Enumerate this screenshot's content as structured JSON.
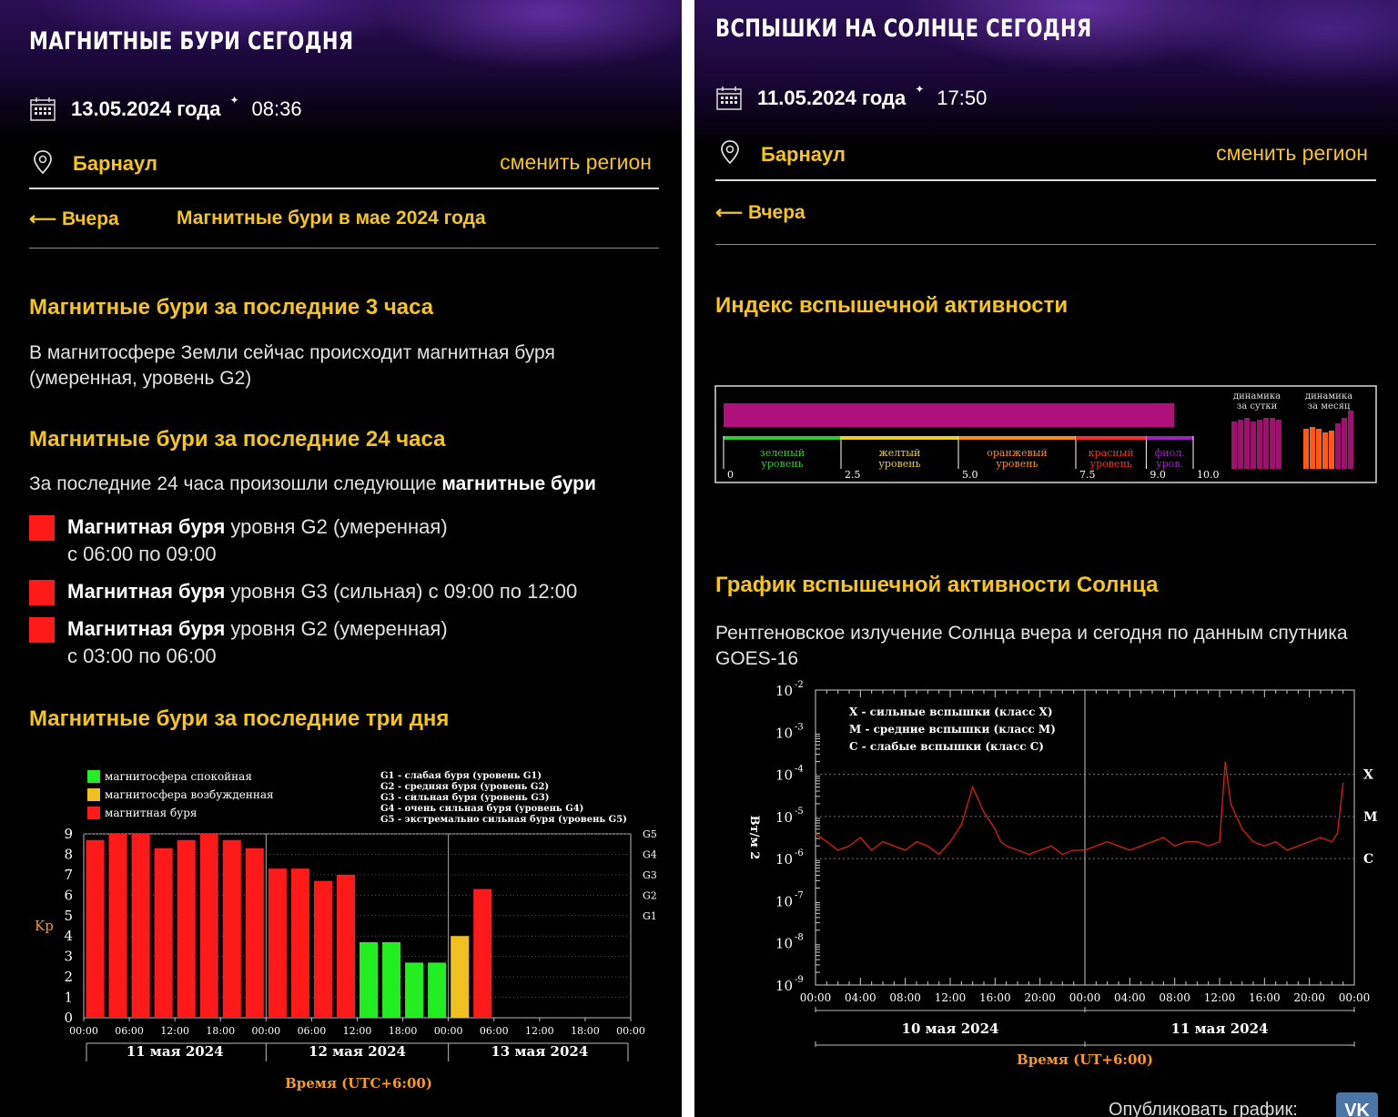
{
  "left": {
    "title": "МАГНИТНЫЕ БУРИ СЕГОДНЯ",
    "date": "13.05.2024 года",
    "time": "08:36",
    "city": "Барнаул",
    "change_region": "сменить регион",
    "nav_prev": "Вчера",
    "nav_month": "Магнитные бури в мае 2024 года",
    "sec1_title": "Магнитные бури за последние 3 часа",
    "sec1_text": "В магнитосфере Земли сейчас происходит магнитная буря (умеренная, уровень G2)",
    "sec2_title": "Магнитные бури за последние 24 часа",
    "sec2_text_plain": "За последние 24 часа произошли следующие ",
    "sec2_text_bold": "магнитные бури",
    "storms": [
      {
        "bold": "Магнитная буря",
        "text": " уровня G2 (умеренная)",
        "line2": "с 06:00 по 09:00"
      },
      {
        "bold": "Магнитная буря",
        "text": " уровня G3 (сильная) с 09:00 по 12:00",
        "line2": ""
      },
      {
        "bold": "Магнитная буря",
        "text": " уровня G2 (умеренная)",
        "line2": "с 03:00 по 06:00"
      }
    ],
    "sec3_title": "Магнитные бури за последние три дня"
  },
  "kp_chart": {
    "chart_data": {
      "type": "bar",
      "ylabel": "Kp",
      "xlabel": "Время (UTC+6:00)",
      "ylim": [
        0,
        9
      ],
      "yticks": [
        "0",
        "1",
        "2",
        "3",
        "4",
        "5",
        "6",
        "7",
        "8",
        "9"
      ],
      "right_ticks": [
        {
          "label": "G5",
          "value": 9
        },
        {
          "label": "G4",
          "value": 8
        },
        {
          "label": "G3",
          "value": 7
        },
        {
          "label": "G2",
          "value": 6
        },
        {
          "label": "G1",
          "value": 5
        }
      ],
      "xticks": [
        "00:00",
        "06:00",
        "12:00",
        "18:00",
        "00:00",
        "06:00",
        "12:00",
        "18:00",
        "00:00",
        "06:00",
        "12:00",
        "18:00",
        "00:00"
      ],
      "days": [
        "11 мая 2024",
        "12 мая 2024",
        "13 мая 2024"
      ],
      "legend_left": [
        {
          "label": "магнитосфера спокойная",
          "color": "#22ee22"
        },
        {
          "label": "магнитосфера возбужденная",
          "color": "#f0c020"
        },
        {
          "label": "магнитная буря",
          "color": "#ff1a1a"
        }
      ],
      "legend_right": [
        "G1 - слабая буря (уровень G1)",
        "G2 - средняя буря (уровень G2)",
        "G3 - сильная буря (уровень G3)",
        "G4 - очень сильная буря (уровень G4)",
        "G5 - экстремально сильная буря (уровень G5)"
      ],
      "values": [
        8.7,
        9.0,
        9.0,
        8.3,
        8.7,
        9.0,
        8.7,
        8.3,
        7.3,
        7.3,
        6.7,
        7.0,
        3.7,
        3.7,
        2.7,
        2.7,
        4.0,
        6.3
      ],
      "colors": [
        "#ff1a1a",
        "#ff1a1a",
        "#ff1a1a",
        "#ff1a1a",
        "#ff1a1a",
        "#ff1a1a",
        "#ff1a1a",
        "#ff1a1a",
        "#ff1a1a",
        "#ff1a1a",
        "#ff1a1a",
        "#ff1a1a",
        "#22ee22",
        "#22ee22",
        "#22ee22",
        "#22ee22",
        "#f0c020",
        "#ff1a1a"
      ]
    }
  },
  "right": {
    "title": "ВСПЫШКИ НА СОЛНЦЕ СЕГОДНЯ",
    "date": "11.05.2024 года",
    "time": "17:50",
    "city": "Барнаул",
    "change_region": "сменить регион",
    "nav_prev": "Вчера",
    "sec1_title": "Индекс вспышечной активности",
    "sec2_title": "График вспышечной активности Солнца",
    "sec2_text": "Рентгеновское излучение Солнца вчера и сегодня по данным спутника GOES-16",
    "publish_label": "Опубликовать график:"
  },
  "flare_index": {
    "value_fraction": 0.96,
    "bar_color": "#b0107a",
    "scale_ticks": [
      "0",
      "2.5",
      "5.0",
      "7.5",
      "9.0",
      "10.0"
    ],
    "zones": [
      {
        "line1": "зеленый",
        "line2": "уровень",
        "color": "#2ecc2e"
      },
      {
        "line1": "желтый",
        "line2": "уровень",
        "color": "#e8d020"
      },
      {
        "line1": "оранжевый",
        "line2": "уровень",
        "color": "#ff8a1a"
      },
      {
        "line1": "красный",
        "line2": "уровень",
        "color": "#ff2a2a"
      },
      {
        "line1": "фиол.",
        "line2": "уров.",
        "color": "#a020c0"
      }
    ],
    "day_label": [
      "динамика",
      "за сутки"
    ],
    "month_label": [
      "динамика",
      "за месяц"
    ]
  },
  "xray_chart": {
    "chart_data": {
      "type": "line",
      "ylabel": "Вт/м 2",
      "xlabel": "Время (UT+6:00)",
      "yscale": "log",
      "ylim": [
        1e-09,
        0.01
      ],
      "yticks_exp": [
        "-9",
        "-8",
        "-7",
        "-6",
        "-5",
        "-4",
        "-3",
        "-2"
      ],
      "class_marks": [
        {
          "label": "X",
          "exp": -4
        },
        {
          "label": "M",
          "exp": -5
        },
        {
          "label": "C",
          "exp": -6
        }
      ],
      "legend": [
        "X - сильные вспышки (класс X)",
        "M - средние вспышки (класс M)",
        "C - слабые вспышки (класс С)"
      ],
      "xticks": [
        "00:00",
        "04:00",
        "08:00",
        "12:00",
        "16:00",
        "20:00",
        "00:00",
        "04:00",
        "08:00",
        "12:00",
        "16:00",
        "20:00",
        "00:00"
      ],
      "days": [
        "10 мая 2024",
        "11 мая 2024"
      ],
      "series_hours": [
        0,
        1,
        2,
        3,
        4,
        5,
        6,
        7,
        8,
        9,
        10,
        11,
        12,
        13,
        14,
        15,
        16,
        16.5,
        17,
        18,
        19,
        20,
        21,
        22,
        23,
        24,
        25,
        26,
        27,
        28,
        29,
        30,
        31,
        32,
        33,
        34,
        35,
        36,
        36.5,
        37,
        38,
        39,
        40,
        41,
        42,
        43,
        44,
        45,
        46,
        46.5,
        47
      ],
      "series_exp": [
        -5.4,
        -5.6,
        -5.8,
        -5.7,
        -5.5,
        -5.8,
        -5.6,
        -5.7,
        -5.8,
        -5.6,
        -5.7,
        -5.9,
        -5.6,
        -5.2,
        -4.3,
        -4.9,
        -5.3,
        -5.6,
        -5.7,
        -5.8,
        -5.9,
        -5.8,
        -5.7,
        -5.9,
        -5.8,
        -5.8,
        -5.7,
        -5.6,
        -5.7,
        -5.8,
        -5.7,
        -5.6,
        -5.5,
        -5.7,
        -5.6,
        -5.6,
        -5.7,
        -5.6,
        -3.7,
        -4.7,
        -5.3,
        -5.6,
        -5.7,
        -5.6,
        -5.8,
        -5.7,
        -5.6,
        -5.5,
        -5.6,
        -5.4,
        -4.2
      ]
    }
  }
}
